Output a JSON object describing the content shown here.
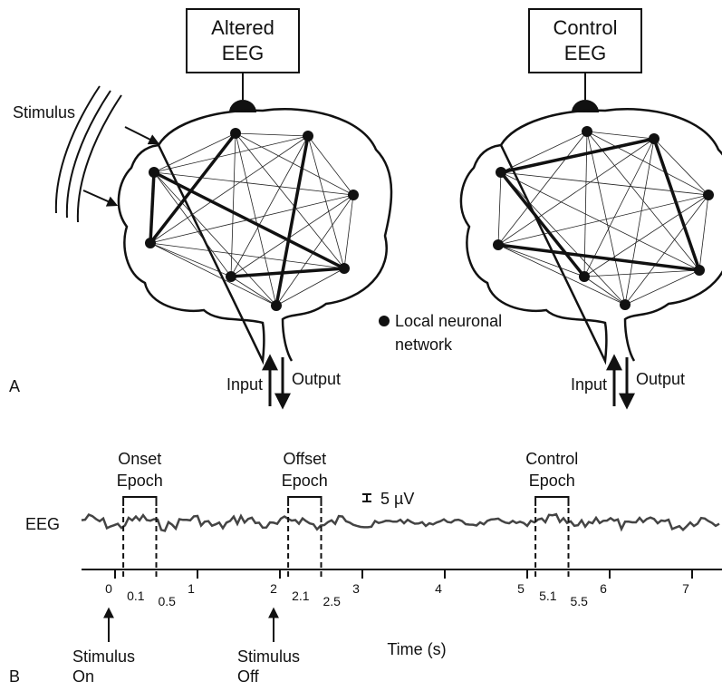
{
  "panel_a": {
    "label": "A",
    "altered_eeg": [
      "Altered",
      "EEG"
    ],
    "control_eeg": [
      "Control",
      "EEG"
    ],
    "stimulus": "Stimulus",
    "legend": [
      "Local neuronal",
      "network"
    ],
    "left_flow": {
      "input": "Input",
      "output": "Output"
    },
    "right_flow": {
      "input": "Input",
      "output": "Output"
    }
  },
  "panel_b": {
    "label": "B",
    "trace_label": "EEG",
    "scale_bar": "5 µV",
    "epochs": [
      {
        "label": [
          "Onset",
          "Epoch"
        ],
        "start": 0.1,
        "end": 0.5
      },
      {
        "label": [
          "Offset",
          "Epoch"
        ],
        "start": 2.1,
        "end": 2.5
      },
      {
        "label": [
          "Control",
          "Epoch"
        ],
        "start": 5.1,
        "end": 5.5
      }
    ],
    "axis": {
      "title": "Time (s)",
      "ticks": [
        0,
        1,
        2,
        3,
        4,
        5,
        6,
        7
      ]
    },
    "events": [
      {
        "label": [
          "Stimulus",
          "On"
        ],
        "time": 0
      },
      {
        "label": [
          "Stimulus",
          "Off"
        ],
        "time": 2
      }
    ]
  }
}
